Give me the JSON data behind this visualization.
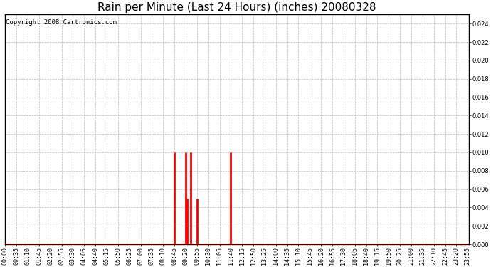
{
  "title": "Rain per Minute (Last 24 Hours) (inches) 20080328",
  "copyright_text": "Copyright 2008 Cartronics.com",
  "ylim": [
    0.0,
    0.025
  ],
  "yticks": [
    0.0,
    0.002,
    0.004,
    0.006,
    0.008,
    0.01,
    0.012,
    0.014,
    0.016,
    0.018,
    0.02,
    0.022,
    0.024
  ],
  "bar_color": "#ff0000",
  "baseline_color": "#ff0000",
  "background_color": "#ffffff",
  "grid_color": "#bbbbbb",
  "total_minutes": 1440,
  "spikes": [
    {
      "minute": 525,
      "value": 0.01
    },
    {
      "minute": 560,
      "value": 0.01
    },
    {
      "minute": 565,
      "value": 0.005
    },
    {
      "minute": 575,
      "value": 0.01
    },
    {
      "minute": 595,
      "value": 0.005
    },
    {
      "minute": 700,
      "value": 0.01
    }
  ],
  "x_tick_interval": 35,
  "title_fontsize": 11,
  "tick_fontsize": 6,
  "copyright_fontsize": 6.5
}
